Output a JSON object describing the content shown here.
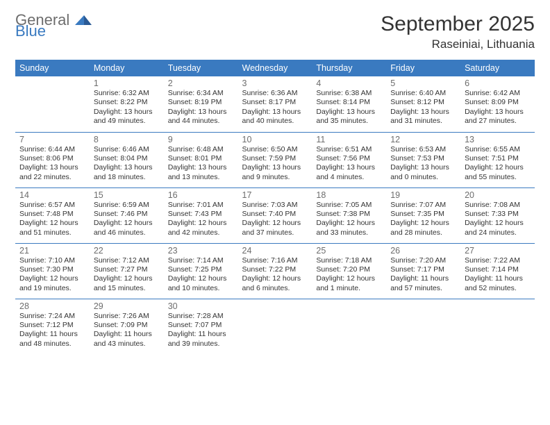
{
  "brand": {
    "general": "General",
    "blue": "Blue"
  },
  "title": "September 2025",
  "location": "Raseiniai, Lithuania",
  "theme": {
    "header_bg": "#3a7ac0",
    "header_text": "#ffffff",
    "border_color": "#3a7ac0",
    "text_color": "#333333",
    "muted_text": "#6d6d6d",
    "background": "#ffffff",
    "logo_blue": "#3a7ac0",
    "logo_gray": "#6d6d6d"
  },
  "weekdays": [
    "Sunday",
    "Monday",
    "Tuesday",
    "Wednesday",
    "Thursday",
    "Friday",
    "Saturday"
  ],
  "start_offset": 1,
  "days": [
    {
      "n": 1,
      "sunrise": "6:32 AM",
      "sunset": "8:22 PM",
      "daylight": "13 hours and 49 minutes."
    },
    {
      "n": 2,
      "sunrise": "6:34 AM",
      "sunset": "8:19 PM",
      "daylight": "13 hours and 44 minutes."
    },
    {
      "n": 3,
      "sunrise": "6:36 AM",
      "sunset": "8:17 PM",
      "daylight": "13 hours and 40 minutes."
    },
    {
      "n": 4,
      "sunrise": "6:38 AM",
      "sunset": "8:14 PM",
      "daylight": "13 hours and 35 minutes."
    },
    {
      "n": 5,
      "sunrise": "6:40 AM",
      "sunset": "8:12 PM",
      "daylight": "13 hours and 31 minutes."
    },
    {
      "n": 6,
      "sunrise": "6:42 AM",
      "sunset": "8:09 PM",
      "daylight": "13 hours and 27 minutes."
    },
    {
      "n": 7,
      "sunrise": "6:44 AM",
      "sunset": "8:06 PM",
      "daylight": "13 hours and 22 minutes."
    },
    {
      "n": 8,
      "sunrise": "6:46 AM",
      "sunset": "8:04 PM",
      "daylight": "13 hours and 18 minutes."
    },
    {
      "n": 9,
      "sunrise": "6:48 AM",
      "sunset": "8:01 PM",
      "daylight": "13 hours and 13 minutes."
    },
    {
      "n": 10,
      "sunrise": "6:50 AM",
      "sunset": "7:59 PM",
      "daylight": "13 hours and 9 minutes."
    },
    {
      "n": 11,
      "sunrise": "6:51 AM",
      "sunset": "7:56 PM",
      "daylight": "13 hours and 4 minutes."
    },
    {
      "n": 12,
      "sunrise": "6:53 AM",
      "sunset": "7:53 PM",
      "daylight": "13 hours and 0 minutes."
    },
    {
      "n": 13,
      "sunrise": "6:55 AM",
      "sunset": "7:51 PM",
      "daylight": "12 hours and 55 minutes."
    },
    {
      "n": 14,
      "sunrise": "6:57 AM",
      "sunset": "7:48 PM",
      "daylight": "12 hours and 51 minutes."
    },
    {
      "n": 15,
      "sunrise": "6:59 AM",
      "sunset": "7:46 PM",
      "daylight": "12 hours and 46 minutes."
    },
    {
      "n": 16,
      "sunrise": "7:01 AM",
      "sunset": "7:43 PM",
      "daylight": "12 hours and 42 minutes."
    },
    {
      "n": 17,
      "sunrise": "7:03 AM",
      "sunset": "7:40 PM",
      "daylight": "12 hours and 37 minutes."
    },
    {
      "n": 18,
      "sunrise": "7:05 AM",
      "sunset": "7:38 PM",
      "daylight": "12 hours and 33 minutes."
    },
    {
      "n": 19,
      "sunrise": "7:07 AM",
      "sunset": "7:35 PM",
      "daylight": "12 hours and 28 minutes."
    },
    {
      "n": 20,
      "sunrise": "7:08 AM",
      "sunset": "7:33 PM",
      "daylight": "12 hours and 24 minutes."
    },
    {
      "n": 21,
      "sunrise": "7:10 AM",
      "sunset": "7:30 PM",
      "daylight": "12 hours and 19 minutes."
    },
    {
      "n": 22,
      "sunrise": "7:12 AM",
      "sunset": "7:27 PM",
      "daylight": "12 hours and 15 minutes."
    },
    {
      "n": 23,
      "sunrise": "7:14 AM",
      "sunset": "7:25 PM",
      "daylight": "12 hours and 10 minutes."
    },
    {
      "n": 24,
      "sunrise": "7:16 AM",
      "sunset": "7:22 PM",
      "daylight": "12 hours and 6 minutes."
    },
    {
      "n": 25,
      "sunrise": "7:18 AM",
      "sunset": "7:20 PM",
      "daylight": "12 hours and 1 minute."
    },
    {
      "n": 26,
      "sunrise": "7:20 AM",
      "sunset": "7:17 PM",
      "daylight": "11 hours and 57 minutes."
    },
    {
      "n": 27,
      "sunrise": "7:22 AM",
      "sunset": "7:14 PM",
      "daylight": "11 hours and 52 minutes."
    },
    {
      "n": 28,
      "sunrise": "7:24 AM",
      "sunset": "7:12 PM",
      "daylight": "11 hours and 48 minutes."
    },
    {
      "n": 29,
      "sunrise": "7:26 AM",
      "sunset": "7:09 PM",
      "daylight": "11 hours and 43 minutes."
    },
    {
      "n": 30,
      "sunrise": "7:28 AM",
      "sunset": "7:07 PM",
      "daylight": "11 hours and 39 minutes."
    }
  ],
  "labels": {
    "sunrise": "Sunrise:",
    "sunset": "Sunset:",
    "daylight": "Daylight:"
  }
}
